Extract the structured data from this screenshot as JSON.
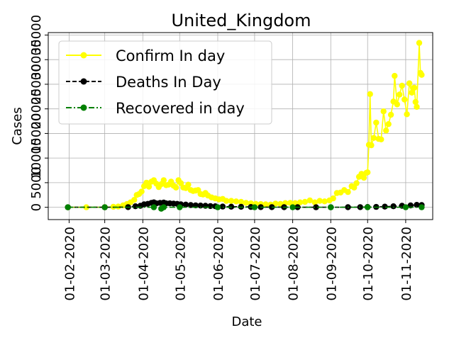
{
  "chart_data": {
    "type": "line",
    "title": "United_Kingdom",
    "xlabel": "Date",
    "ylabel": "Cases",
    "x_ticks": [
      "01-02-2020",
      "01-03-2020",
      "01-04-2020",
      "01-05-2020",
      "01-06-2020",
      "01-07-2020",
      "01-08-2020",
      "01-09-2020",
      "01-10-2020",
      "01-11-2020"
    ],
    "x_tick_dates": [
      "2020-02-01",
      "2020-03-01",
      "2020-04-01",
      "2020-05-01",
      "2020-06-01",
      "2020-07-01",
      "2020-08-01",
      "2020-09-01",
      "2020-10-01",
      "2020-11-01"
    ],
    "xlim": [
      "2020-01-15",
      "2020-11-23"
    ],
    "ylim": [
      -2500,
      35500
    ],
    "y_ticks": [
      0,
      5000,
      10000,
      15000,
      20000,
      25000,
      30000,
      35000
    ],
    "y_tick_labels": [
      "0",
      "5000",
      "10000",
      "15000",
      "20000",
      "25000",
      "30000",
      "35000"
    ],
    "grid": true,
    "legend_position": "upper-left",
    "series": [
      {
        "name": "Confirm In day",
        "color": "#ffff00",
        "linestyle": "solid",
        "marker": "circle",
        "points": [
          [
            "2020-01-31",
            0
          ],
          [
            "2020-02-15",
            0
          ],
          [
            "2020-03-01",
            20
          ],
          [
            "2020-03-08",
            100
          ],
          [
            "2020-03-12",
            150
          ],
          [
            "2020-03-16",
            400
          ],
          [
            "2020-03-19",
            650
          ],
          [
            "2020-03-22",
            1000
          ],
          [
            "2020-03-25",
            1500
          ],
          [
            "2020-03-27",
            2500
          ],
          [
            "2020-03-29",
            2700
          ],
          [
            "2020-03-31",
            3200
          ],
          [
            "2020-04-02",
            4300
          ],
          [
            "2020-04-04",
            5000
          ],
          [
            "2020-04-06",
            4200
          ],
          [
            "2020-04-08",
            5200
          ],
          [
            "2020-04-10",
            5500
          ],
          [
            "2020-04-12",
            4800
          ],
          [
            "2020-04-14",
            4100
          ],
          [
            "2020-04-16",
            4700
          ],
          [
            "2020-04-18",
            5500
          ],
          [
            "2020-04-20",
            4500
          ],
          [
            "2020-04-22",
            4600
          ],
          [
            "2020-04-24",
            5200
          ],
          [
            "2020-04-26",
            4400
          ],
          [
            "2020-04-28",
            4000
          ],
          [
            "2020-04-30",
            5500
          ],
          [
            "2020-05-02",
            4900
          ],
          [
            "2020-05-04",
            4000
          ],
          [
            "2020-05-06",
            3900
          ],
          [
            "2020-05-08",
            4600
          ],
          [
            "2020-05-10",
            3500
          ],
          [
            "2020-05-12",
            3300
          ],
          [
            "2020-05-14",
            3400
          ],
          [
            "2020-05-16",
            3500
          ],
          [
            "2020-05-18",
            2700
          ],
          [
            "2020-05-20",
            2600
          ],
          [
            "2020-05-22",
            2900
          ],
          [
            "2020-05-24",
            2400
          ],
          [
            "2020-05-27",
            2000
          ],
          [
            "2020-05-30",
            1800
          ],
          [
            "2020-06-02",
            1600
          ],
          [
            "2020-06-05",
            1700
          ],
          [
            "2020-06-08",
            1300
          ],
          [
            "2020-06-12",
            1300
          ],
          [
            "2020-06-16",
            1200
          ],
          [
            "2020-06-20",
            1100
          ],
          [
            "2020-06-24",
            900
          ],
          [
            "2020-06-28",
            800
          ],
          [
            "2020-07-02",
            700
          ],
          [
            "2020-07-06",
            650
          ],
          [
            "2020-07-10",
            600
          ],
          [
            "2020-07-14",
            550
          ],
          [
            "2020-07-18",
            750
          ],
          [
            "2020-07-22",
            700
          ],
          [
            "2020-07-26",
            850
          ],
          [
            "2020-07-30",
            900
          ],
          [
            "2020-08-03",
            850
          ],
          [
            "2020-08-07",
            1000
          ],
          [
            "2020-08-11",
            1100
          ],
          [
            "2020-08-15",
            1400
          ],
          [
            "2020-08-19",
            1000
          ],
          [
            "2020-08-23",
            1300
          ],
          [
            "2020-08-27",
            1200
          ],
          [
            "2020-08-31",
            1400
          ],
          [
            "2020-09-03",
            1800
          ],
          [
            "2020-09-06",
            2900
          ],
          [
            "2020-09-09",
            3000
          ],
          [
            "2020-09-12",
            3500
          ],
          [
            "2020-09-15",
            3100
          ],
          [
            "2020-09-18",
            4300
          ],
          [
            "2020-09-20",
            4000
          ],
          [
            "2020-09-22",
            4900
          ],
          [
            "2020-09-24",
            6200
          ],
          [
            "2020-09-26",
            6800
          ],
          [
            "2020-09-28",
            6000
          ],
          [
            "2020-09-30",
            7000
          ],
          [
            "2020-10-01",
            7100
          ],
          [
            "2020-10-02",
            12700
          ],
          [
            "2020-10-03",
            23000
          ],
          [
            "2020-10-04",
            12600
          ],
          [
            "2020-10-06",
            14100
          ],
          [
            "2020-10-08",
            17200
          ],
          [
            "2020-10-10",
            13900
          ],
          [
            "2020-10-12",
            13800
          ],
          [
            "2020-10-14",
            19500
          ],
          [
            "2020-10-16",
            15600
          ],
          [
            "2020-10-18",
            16900
          ],
          [
            "2020-10-20",
            18800
          ],
          [
            "2020-10-22",
            21500
          ],
          [
            "2020-10-23",
            26700
          ],
          [
            "2020-10-25",
            20900
          ],
          [
            "2020-10-27",
            22900
          ],
          [
            "2020-10-29",
            24700
          ],
          [
            "2020-10-31",
            21900
          ],
          [
            "2020-11-02",
            18900
          ],
          [
            "2020-11-04",
            25200
          ],
          [
            "2020-11-06",
            23300
          ],
          [
            "2020-11-07",
            24200
          ],
          [
            "2020-11-08",
            24300
          ],
          [
            "2020-11-09",
            21400
          ],
          [
            "2020-11-10",
            20400
          ],
          [
            "2020-11-12",
            33400
          ],
          [
            "2020-11-13",
            27300
          ],
          [
            "2020-11-14",
            26900
          ]
        ]
      },
      {
        "name": "Deaths In Day",
        "color": "#000000",
        "linestyle": "dashed",
        "marker": "circle",
        "points": [
          [
            "2020-01-31",
            0
          ],
          [
            "2020-03-01",
            0
          ],
          [
            "2020-03-20",
            40
          ],
          [
            "2020-03-26",
            200
          ],
          [
            "2020-03-30",
            300
          ],
          [
            "2020-04-02",
            600
          ],
          [
            "2020-04-05",
            700
          ],
          [
            "2020-04-08",
            900
          ],
          [
            "2020-04-10",
            1000
          ],
          [
            "2020-04-12",
            800
          ],
          [
            "2020-04-15",
            900
          ],
          [
            "2020-04-18",
            950
          ],
          [
            "2020-04-20",
            800
          ],
          [
            "2020-04-23",
            800
          ],
          [
            "2020-04-26",
            750
          ],
          [
            "2020-04-29",
            700
          ],
          [
            "2020-05-02",
            600
          ],
          [
            "2020-05-06",
            550
          ],
          [
            "2020-05-10",
            450
          ],
          [
            "2020-05-14",
            400
          ],
          [
            "2020-05-18",
            350
          ],
          [
            "2020-05-22",
            300
          ],
          [
            "2020-05-26",
            250
          ],
          [
            "2020-05-30",
            200
          ],
          [
            "2020-06-05",
            150
          ],
          [
            "2020-06-12",
            120
          ],
          [
            "2020-06-20",
            100
          ],
          [
            "2020-06-28",
            60
          ],
          [
            "2020-07-06",
            40
          ],
          [
            "2020-07-15",
            30
          ],
          [
            "2020-07-25",
            20
          ],
          [
            "2020-08-05",
            15
          ],
          [
            "2020-08-20",
            10
          ],
          [
            "2020-09-01",
            10
          ],
          [
            "2020-09-15",
            20
          ],
          [
            "2020-09-25",
            40
          ],
          [
            "2020-10-01",
            60
          ],
          [
            "2020-10-08",
            80
          ],
          [
            "2020-10-15",
            140
          ],
          [
            "2020-10-22",
            200
          ],
          [
            "2020-10-29",
            300
          ],
          [
            "2020-11-05",
            380
          ],
          [
            "2020-11-10",
            500
          ],
          [
            "2020-11-14",
            450
          ]
        ]
      },
      {
        "name": "Recovered in day",
        "color": "#008000",
        "linestyle": "dashdot",
        "marker": "circle",
        "points": [
          [
            "2020-01-31",
            0
          ],
          [
            "2020-03-01",
            0
          ],
          [
            "2020-04-10",
            0
          ],
          [
            "2020-04-16",
            -300
          ],
          [
            "2020-04-18",
            0
          ],
          [
            "2020-05-01",
            0
          ],
          [
            "2020-06-01",
            0
          ],
          [
            "2020-07-01",
            0
          ],
          [
            "2020-08-01",
            0
          ],
          [
            "2020-09-01",
            0
          ],
          [
            "2020-10-01",
            0
          ],
          [
            "2020-11-01",
            0
          ],
          [
            "2020-11-14",
            0
          ]
        ]
      }
    ]
  }
}
